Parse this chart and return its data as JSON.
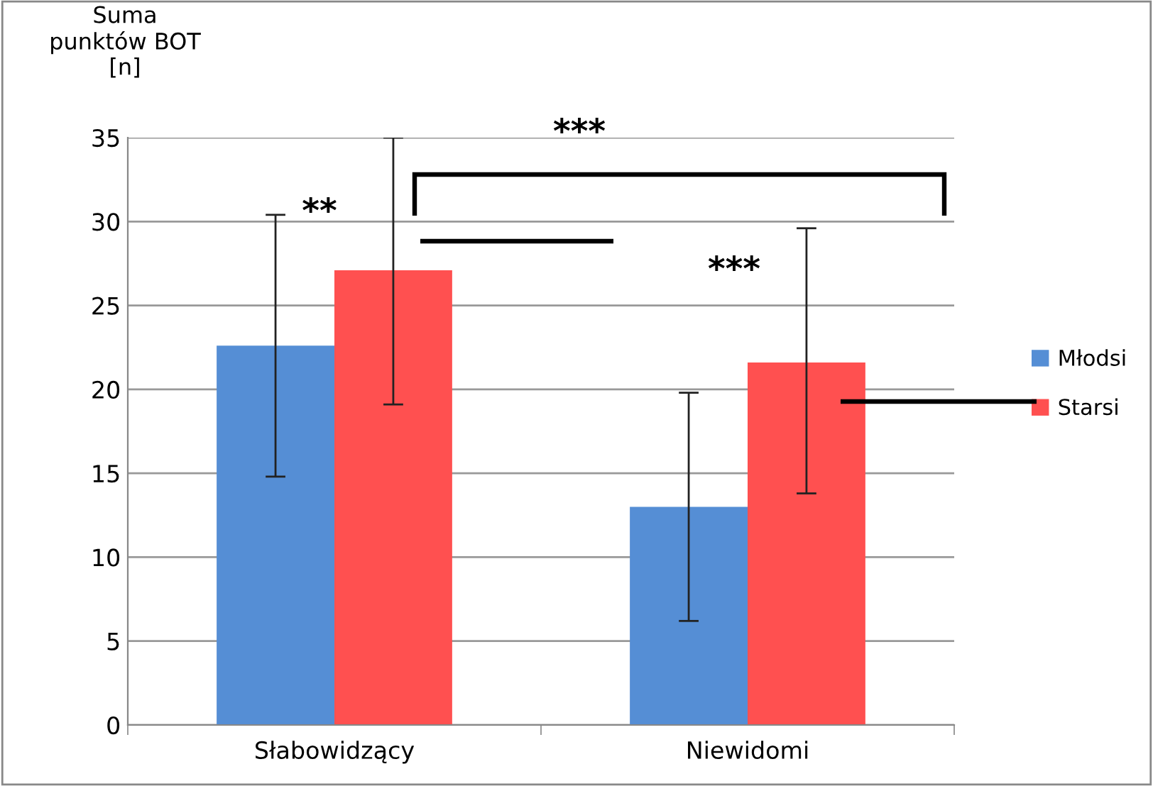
{
  "chart_data": {
    "type": "bar",
    "ylabel": "Suma\npunktów BOT\n[n]",
    "categories": [
      "Słabowidzący",
      "Niewidomi"
    ],
    "series": [
      {
        "name": "Młodsi",
        "color": "#558ed5",
        "values": [
          22.6,
          13.0
        ],
        "errors": [
          [
            14.8,
            30.4
          ],
          [
            6.2,
            19.8
          ]
        ]
      },
      {
        "name": "Starsi",
        "color": "#ff5050",
        "values": [
          27.1,
          21.6
        ],
        "errors": [
          [
            19.1,
            35
          ],
          [
            13.8,
            29.6
          ]
        ]
      }
    ],
    "ylim": [
      0,
      35
    ],
    "yticks": [
      0,
      5,
      10,
      15,
      20,
      25,
      30,
      35
    ],
    "grid": "y",
    "legend": "right",
    "annotations": [
      "**",
      "***",
      "***"
    ]
  }
}
